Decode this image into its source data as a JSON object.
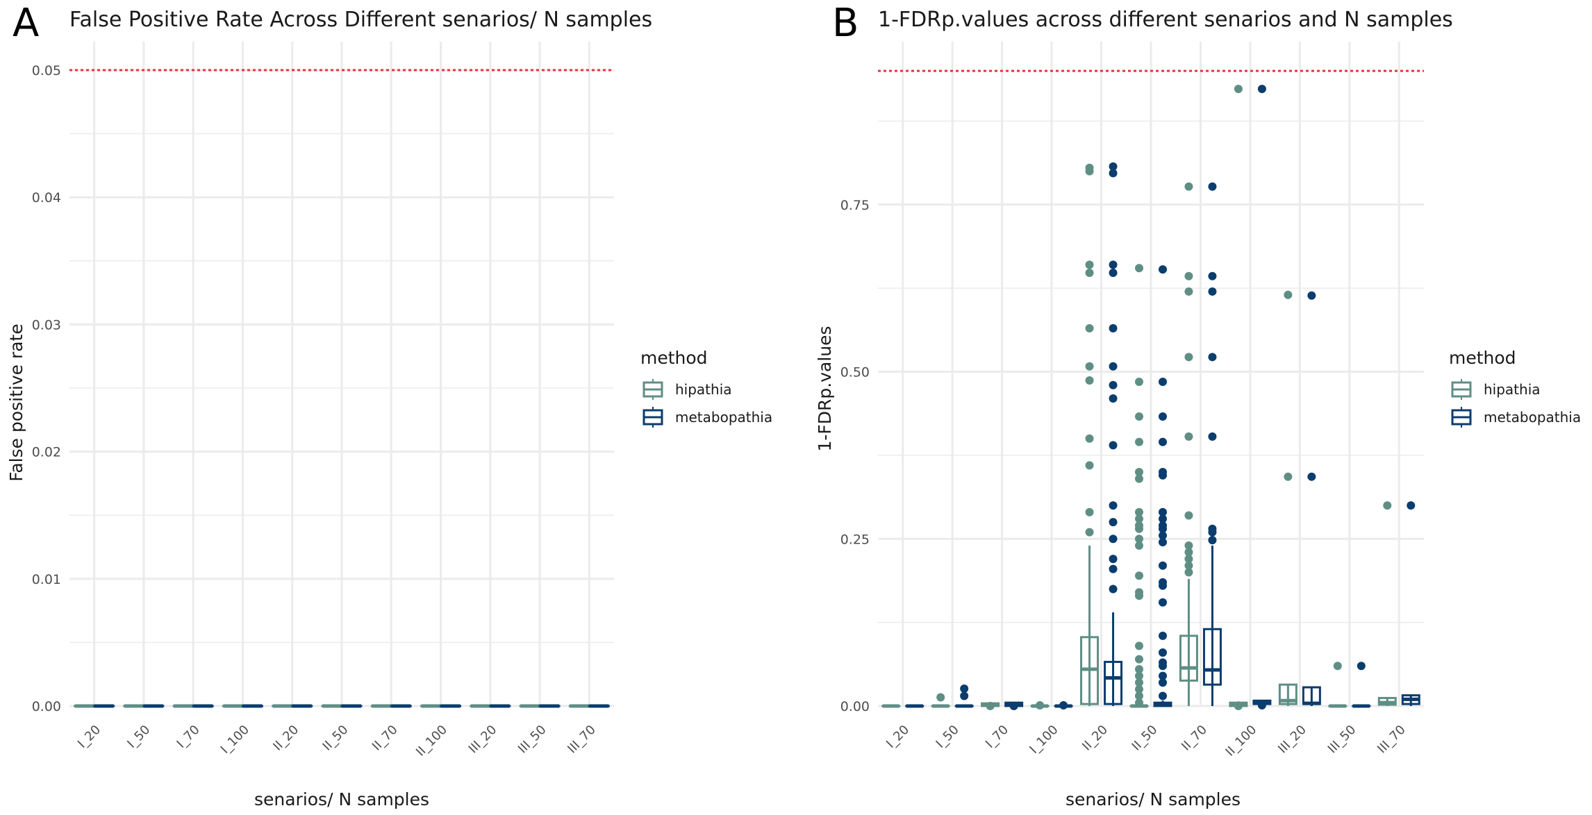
{
  "colors": {
    "hipathia": "#5f8e85",
    "metabopathia": "#0b3d6e",
    "threshold": "#e8323c",
    "grid": "#ebebeb"
  },
  "chart_data": [
    {
      "panel": "A",
      "type": "box",
      "title": "False Positive Rate Across Different senarios/ N samples",
      "xlabel": "senarios/ N samples",
      "ylabel": "False positive rate",
      "ylim": [
        0,
        0.05
      ],
      "yticks": [
        0.0,
        0.01,
        0.02,
        0.03,
        0.04,
        0.05
      ],
      "ytick_labels": [
        "0.00",
        "0.01",
        "0.02",
        "0.03",
        "0.04",
        "0.05"
      ],
      "categories": [
        "I_20",
        "I_50",
        "I_70",
        "I_100",
        "II_20",
        "II_50",
        "II_70",
        "II_100",
        "III_20",
        "III_50",
        "III_70"
      ],
      "threshold": 0.05,
      "legend": {
        "title": "method",
        "entries": [
          "hipathia",
          "metabopathia"
        ],
        "position": "right"
      },
      "series": [
        {
          "name": "hipathia",
          "boxes": [
            {
              "min": 0,
              "q1": 0,
              "median": 0,
              "q3": 0,
              "max": 0,
              "outliers": []
            },
            {
              "min": 0,
              "q1": 0,
              "median": 0,
              "q3": 0,
              "max": 0,
              "outliers": []
            },
            {
              "min": 0,
              "q1": 0,
              "median": 0,
              "q3": 0,
              "max": 0,
              "outliers": []
            },
            {
              "min": 0,
              "q1": 0,
              "median": 0,
              "q3": 0,
              "max": 0,
              "outliers": []
            },
            {
              "min": 0,
              "q1": 0,
              "median": 0,
              "q3": 0,
              "max": 0,
              "outliers": []
            },
            {
              "min": 0,
              "q1": 0,
              "median": 0,
              "q3": 0,
              "max": 0,
              "outliers": []
            },
            {
              "min": 0,
              "q1": 0,
              "median": 0,
              "q3": 0,
              "max": 0,
              "outliers": []
            },
            {
              "min": 0,
              "q1": 0,
              "median": 0,
              "q3": 0,
              "max": 0,
              "outliers": []
            },
            {
              "min": 0,
              "q1": 0,
              "median": 0,
              "q3": 0,
              "max": 0,
              "outliers": []
            },
            {
              "min": 0,
              "q1": 0,
              "median": 0,
              "q3": 0,
              "max": 0,
              "outliers": []
            },
            {
              "min": 0,
              "q1": 0,
              "median": 0,
              "q3": 0,
              "max": 0,
              "outliers": []
            }
          ]
        },
        {
          "name": "metabopathia",
          "boxes": [
            {
              "min": 0,
              "q1": 0,
              "median": 0,
              "q3": 0,
              "max": 0,
              "outliers": []
            },
            {
              "min": 0,
              "q1": 0,
              "median": 0,
              "q3": 0,
              "max": 0,
              "outliers": []
            },
            {
              "min": 0,
              "q1": 0,
              "median": 0,
              "q3": 0,
              "max": 0,
              "outliers": []
            },
            {
              "min": 0,
              "q1": 0,
              "median": 0,
              "q3": 0,
              "max": 0,
              "outliers": []
            },
            {
              "min": 0,
              "q1": 0,
              "median": 0,
              "q3": 0,
              "max": 0,
              "outliers": []
            },
            {
              "min": 0,
              "q1": 0,
              "median": 0,
              "q3": 0,
              "max": 0,
              "outliers": []
            },
            {
              "min": 0,
              "q1": 0,
              "median": 0,
              "q3": 0,
              "max": 0,
              "outliers": []
            },
            {
              "min": 0,
              "q1": 0,
              "median": 0,
              "q3": 0,
              "max": 0,
              "outliers": []
            },
            {
              "min": 0,
              "q1": 0,
              "median": 0,
              "q3": 0,
              "max": 0,
              "outliers": []
            },
            {
              "min": 0,
              "q1": 0,
              "median": 0,
              "q3": 0,
              "max": 0,
              "outliers": []
            },
            {
              "min": 0,
              "q1": 0,
              "median": 0,
              "q3": 0,
              "max": 0,
              "outliers": []
            }
          ]
        }
      ]
    },
    {
      "panel": "B",
      "type": "box",
      "title": "1-FDRp.values across different senarios and N samples",
      "xlabel": "senarios/ N samples",
      "ylabel": "1-FDRp.values",
      "ylim": [
        0,
        0.95
      ],
      "yticks": [
        0.0,
        0.25,
        0.5,
        0.75
      ],
      "ytick_labels": [
        "0.00",
        "0.25",
        "0.50",
        "0.75"
      ],
      "categories": [
        "I_20",
        "I_50",
        "I_70",
        "I_100",
        "II_20",
        "II_50",
        "II_70",
        "II_100",
        "III_20",
        "III_50",
        "III_70"
      ],
      "threshold": 0.95,
      "legend": {
        "title": "method",
        "entries": [
          "hipathia",
          "metabopathia"
        ],
        "position": "right"
      },
      "series": [
        {
          "name": "hipathia",
          "boxes": [
            {
              "min": 0,
              "q1": 0,
              "median": 0,
              "q3": 0,
              "max": 0,
              "outliers": []
            },
            {
              "min": 0,
              "q1": 0,
              "median": 0,
              "q3": 0,
              "max": 0,
              "outliers": [
                0.013
              ]
            },
            {
              "min": 0,
              "q1": 0,
              "median": 0.002,
              "q3": 0.004,
              "max": 0.006,
              "outliers": [
                0.0
              ]
            },
            {
              "min": 0,
              "q1": 0,
              "median": 0,
              "q3": 0,
              "max": 0,
              "outliers": [
                0.001
              ]
            },
            {
              "min": 0,
              "q1": 0.003,
              "median": 0.055,
              "q3": 0.103,
              "max": 0.24,
              "outliers": [
                0.26,
                0.29,
                0.36,
                0.4,
                0.487,
                0.508,
                0.565,
                0.648,
                0.66,
                0.8,
                0.805
              ]
            },
            {
              "min": 0,
              "q1": 0,
              "median": 0,
              "q3": 0,
              "max": 0,
              "outliers": [
                0.005,
                0.015,
                0.025,
                0.035,
                0.045,
                0.055,
                0.07,
                0.09,
                0.165,
                0.17,
                0.195,
                0.24,
                0.25,
                0.265,
                0.27,
                0.28,
                0.29,
                0.34,
                0.35,
                0.395,
                0.433,
                0.485,
                0.655
              ]
            },
            {
              "min": 0,
              "q1": 0.038,
              "median": 0.057,
              "q3": 0.105,
              "max": 0.19,
              "outliers": [
                0.2,
                0.21,
                0.22,
                0.23,
                0.24,
                0.285,
                0.403,
                0.522,
                0.62,
                0.643,
                0.777
              ]
            },
            {
              "min": 0,
              "q1": 0,
              "median": 0.003,
              "q3": 0.005,
              "max": 0.007,
              "outliers": [
                0.0,
                0.923
              ]
            },
            {
              "min": 0,
              "q1": 0.003,
              "median": 0.008,
              "q3": 0.032,
              "max": 0.032,
              "outliers": [
                0.343,
                0.615
              ]
            },
            {
              "min": 0,
              "q1": 0,
              "median": 0,
              "q3": 0,
              "max": 0,
              "outliers": [
                0.06
              ]
            },
            {
              "min": 0,
              "q1": 0.002,
              "median": 0.005,
              "q3": 0.012,
              "max": 0.012,
              "outliers": [
                0.3
              ]
            }
          ]
        },
        {
          "name": "metabopathia",
          "boxes": [
            {
              "min": 0,
              "q1": 0,
              "median": 0,
              "q3": 0,
              "max": 0,
              "outliers": []
            },
            {
              "min": 0,
              "q1": 0,
              "median": 0,
              "q3": 0,
              "max": 0,
              "outliers": [
                0.015,
                0.026
              ]
            },
            {
              "min": 0,
              "q1": 0,
              "median": 0.002,
              "q3": 0.005,
              "max": 0.006,
              "outliers": [
                0.0
              ]
            },
            {
              "min": 0,
              "q1": 0,
              "median": 0,
              "q3": 0,
              "max": 0,
              "outliers": [
                0.001
              ]
            },
            {
              "min": 0,
              "q1": 0.003,
              "median": 0.042,
              "q3": 0.066,
              "max": 0.14,
              "outliers": [
                0.175,
                0.205,
                0.22,
                0.25,
                0.275,
                0.3,
                0.39,
                0.46,
                0.48,
                0.508,
                0.565,
                0.648,
                0.66,
                0.797,
                0.807
              ]
            },
            {
              "min": 0,
              "q1": 0,
              "median": 0.003,
              "q3": 0.005,
              "max": 0.008,
              "outliers": [
                0.015,
                0.035,
                0.045,
                0.06,
                0.065,
                0.08,
                0.105,
                0.155,
                0.18,
                0.185,
                0.21,
                0.245,
                0.255,
                0.265,
                0.27,
                0.28,
                0.29,
                0.345,
                0.35,
                0.395,
                0.433,
                0.485,
                0.653
              ]
            },
            {
              "min": 0,
              "q1": 0.032,
              "median": 0.054,
              "q3": 0.115,
              "max": 0.24,
              "outliers": [
                0.248,
                0.26,
                0.265,
                0.403,
                0.522,
                0.62,
                0.643,
                0.777
              ]
            },
            {
              "min": 0,
              "q1": 0.003,
              "median": 0.005,
              "q3": 0.008,
              "max": 0.009,
              "outliers": [
                0.001,
                0.923
              ]
            },
            {
              "min": 0,
              "q1": 0.003,
              "median": 0.004,
              "q3": 0.028,
              "max": 0.028,
              "outliers": [
                0.343,
                0.614
              ]
            },
            {
              "min": 0,
              "q1": 0,
              "median": 0,
              "q3": 0,
              "max": 0,
              "outliers": [
                0.06
              ]
            },
            {
              "min": 0,
              "q1": 0.003,
              "median": 0.01,
              "q3": 0.016,
              "max": 0.016,
              "outliers": [
                0.3
              ]
            }
          ]
        }
      ]
    }
  ]
}
